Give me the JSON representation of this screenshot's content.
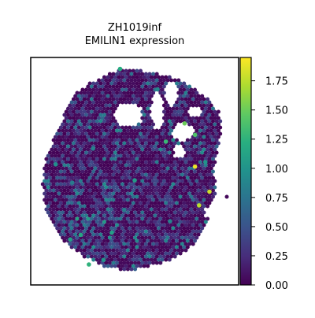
{
  "chart_data": {
    "type": "scatter",
    "title": "ZH1019inf\nEMILIN1 expression",
    "title_lines": [
      "ZH1019inf",
      "EMILIN1 expression"
    ],
    "xlabel": "",
    "ylabel": "",
    "grid": false,
    "colormap": "viridis",
    "colorbar": {
      "vmin": 0.0,
      "vmax": 1.95,
      "ticks": [
        0.0,
        0.25,
        0.5,
        0.75,
        1.0,
        1.25,
        1.5,
        1.75
      ],
      "tick_labels": [
        "0.00",
        "0.25",
        "0.50",
        "0.75",
        "1.00",
        "1.25",
        "1.50",
        "1.75"
      ],
      "placement": "right"
    },
    "highlights": [
      {
        "x": 0.79,
        "y": 0.52,
        "value": 1.9
      },
      {
        "x": 0.86,
        "y": 0.41,
        "value": 1.8
      },
      {
        "x": 0.81,
        "y": 0.35,
        "value": 1.75
      },
      {
        "x": 0.74,
        "y": 0.71,
        "value": 1.5
      },
      {
        "x": 0.79,
        "y": 0.66,
        "value": 1.4
      },
      {
        "x": 0.65,
        "y": 0.63,
        "value": 1.3
      },
      {
        "x": 0.28,
        "y": 0.09,
        "value": 1.25
      },
      {
        "x": 0.43,
        "y": 0.95,
        "value": 1.2
      },
      {
        "x": 0.24,
        "y": 0.22,
        "value": 1.15
      },
      {
        "x": 0.19,
        "y": 0.2,
        "value": 1.1
      },
      {
        "x": 0.39,
        "y": 0.23,
        "value": 1.1
      },
      {
        "x": 0.5,
        "y": 0.46,
        "value": 1.05
      },
      {
        "x": 0.35,
        "y": 0.11,
        "value": 1.0
      },
      {
        "x": 0.84,
        "y": 0.54,
        "value": 1.0
      },
      {
        "x": 0.12,
        "y": 0.53,
        "value": 0.95
      },
      {
        "x": 0.61,
        "y": 0.86,
        "value": 0.9
      },
      {
        "x": 0.3,
        "y": 0.6,
        "value": 0.85
      },
      {
        "x": 0.67,
        "y": 0.28,
        "value": 0.85
      },
      {
        "x": 0.2,
        "y": 0.45,
        "value": 0.8
      },
      {
        "x": 0.45,
        "y": 0.33,
        "value": 0.8
      }
    ]
  }
}
